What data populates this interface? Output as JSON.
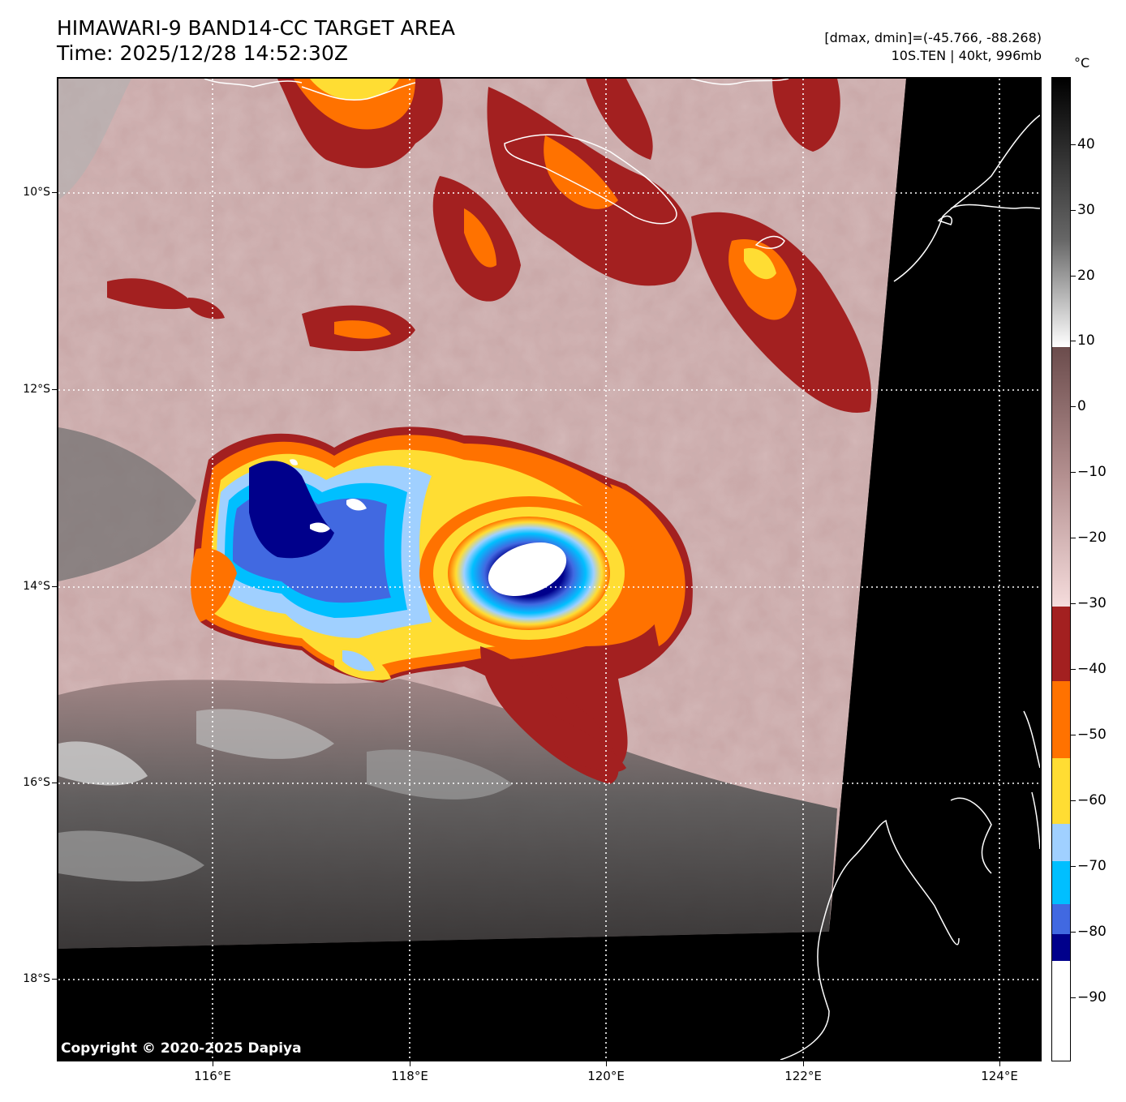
{
  "title": {
    "line1": "HIMAWARI-9 BAND14-CC TARGET AREA",
    "line2": "Time: 2025/12/28 14:52:30Z"
  },
  "info": {
    "range": "[dmax, dmin]=(-45.766, -88.268)",
    "storm": "10S.TEN | 40kt, 996mb"
  },
  "colorbar": {
    "unit": "°C",
    "ticks": [
      "40",
      "30",
      "20",
      "10",
      "0",
      "−10",
      "−20",
      "−30",
      "−40",
      "−50",
      "−60",
      "−70",
      "−80",
      "−90"
    ],
    "colors": {
      "below_-85": "#ffffff",
      "-85_-80": "#00008b",
      "-80_-75": "#4169e1",
      "-75_-70": "#00bfff",
      "-70_-65": "#a0d0ff",
      "-65_-55": "#ffdd33",
      "-55_-45": "#ff7200",
      "-45_-30": "#a32020",
      "-30_10": "gradient white-pink to brown",
      "above_10": "gradient white to black"
    }
  },
  "map": {
    "lat_labels": [
      "10°S",
      "12°S",
      "14°S",
      "16°S",
      "18°S"
    ],
    "lon_labels": [
      "116°E",
      "118°E",
      "120°E",
      "122°E",
      "124°E"
    ],
    "copyright": "Copyright © 2020-2025 Dapiya"
  }
}
